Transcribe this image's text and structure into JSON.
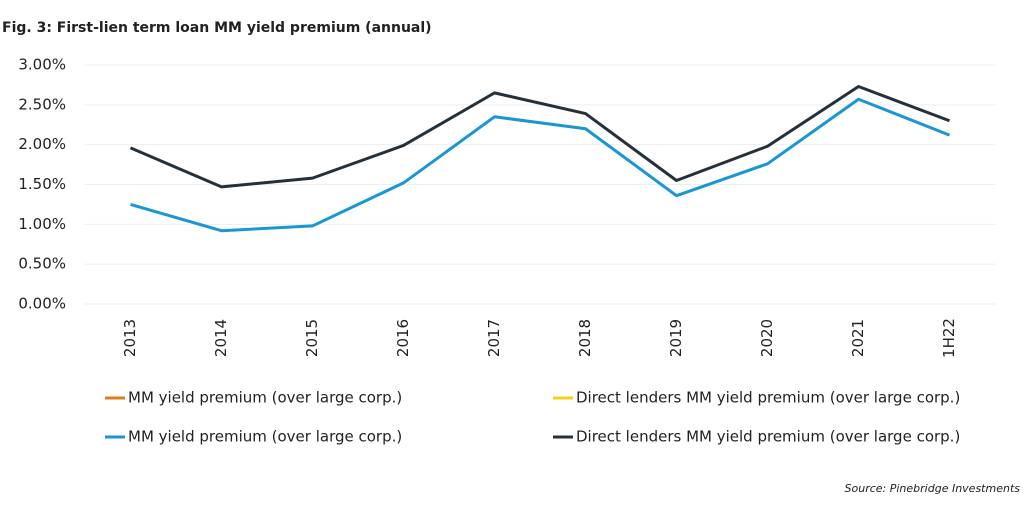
{
  "chart_data": {
    "type": "line",
    "title": "Fig. 3: First-lien term loan MM yield premium (annual)",
    "source": "Source: Pinebridge Investments",
    "categories": [
      "2013",
      "2014",
      "2015",
      "2016",
      "2017",
      "2018",
      "2019",
      "2020",
      "2021",
      "1H22"
    ],
    "series": [
      {
        "name": "MM yield premium (over large corp.)",
        "color": "#e07b1a",
        "values": [
          null,
          null,
          null,
          null,
          null,
          null,
          null,
          null,
          null,
          null
        ]
      },
      {
        "name": "Direct lenders MM yield premium (over large corp.)",
        "color": "#f2d01c",
        "values": [
          null,
          null,
          null,
          null,
          null,
          null,
          null,
          null,
          null,
          null
        ]
      },
      {
        "name": "MM yield premium (over large corp.)",
        "color": "#1a96d4",
        "values": [
          1.25,
          0.92,
          0.98,
          1.52,
          2.35,
          2.2,
          1.36,
          1.76,
          2.57,
          2.12
        ]
      },
      {
        "name": "Direct lenders MM yield premium (over large corp.)",
        "color": "#24313a",
        "values": [
          1.96,
          1.47,
          1.58,
          1.99,
          2.65,
          2.39,
          1.55,
          1.98,
          2.73,
          2.3
        ]
      }
    ],
    "ylim": [
      0,
      3
    ],
    "yticks": [
      {
        "value": 0,
        "label": "0.00%"
      },
      {
        "value": 0.5,
        "label": "0.50%"
      },
      {
        "value": 1,
        "label": "1.00%"
      },
      {
        "value": 1.5,
        "label": "1.50%"
      },
      {
        "value": 2,
        "label": "2.00%"
      },
      {
        "value": 2.5,
        "label": "2.50%"
      },
      {
        "value": 3,
        "label": "3.00%"
      }
    ],
    "grid": true
  }
}
